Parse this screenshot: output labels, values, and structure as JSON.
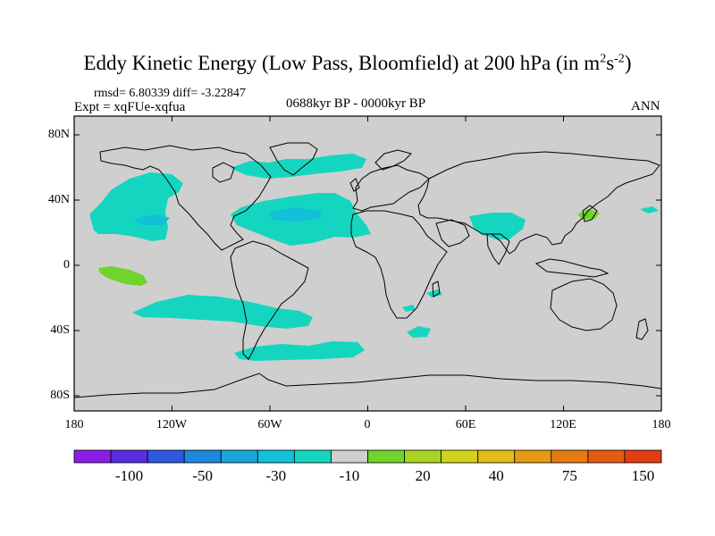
{
  "title": {
    "main": "Eddy Kinetic Energy (Low Pass, Bloomfield) at 200 hPa (in m",
    "sup1": "2",
    "mid": "s",
    "sup2": "-2",
    "close": ")"
  },
  "stats": "rmsd= 6.80339 diff= -3.22847",
  "expt": "Expt = xqFUe-xqfua",
  "period": "0688kyr BP - 0000kyr BP",
  "season": "ANN",
  "map": {
    "projection": "cylindrical-equidistant",
    "lon_range": [
      -180,
      180
    ],
    "lat_range": [
      -90,
      90
    ],
    "background_color": "#cfcfcf",
    "coastline_color": "#000000",
    "lat_labels": [
      "80N",
      "40N",
      "0",
      "40S",
      "80S"
    ],
    "lon_labels": [
      "180",
      "120W",
      "60W",
      "0",
      "60E",
      "120E",
      "180"
    ]
  },
  "colorbar": {
    "colors": [
      "#8a1ee6",
      "#5a2de0",
      "#2f57e0",
      "#1f87e0",
      "#17a7d8",
      "#12c0d8",
      "#14d6c0",
      "#cfcfcf",
      "#6fd42b",
      "#a9d323",
      "#d2d21c",
      "#e2bd15",
      "#e59a12",
      "#e57b10",
      "#e55b10",
      "#e23e12"
    ],
    "labels": [
      "-100",
      "-50",
      "-30",
      "-10",
      "20",
      "40",
      "75",
      "150"
    ]
  }
}
